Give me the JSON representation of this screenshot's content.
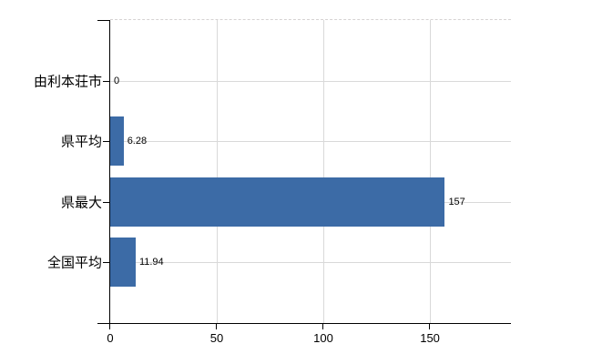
{
  "chart_data": {
    "type": "bar",
    "orientation": "horizontal",
    "title": "",
    "categories": [
      "由利本荘市",
      "県平均",
      "県最大",
      "全国平均"
    ],
    "values": [
      0,
      6.28,
      157,
      11.94
    ],
    "value_labels": [
      "0",
      "6.28",
      "157",
      "11.94"
    ],
    "xlim": [
      0,
      188
    ],
    "x_ticks": [
      0,
      50,
      100,
      150
    ],
    "x_tick_labels": [
      "0",
      "50",
      "100",
      "150"
    ],
    "grid": true,
    "legend": "none",
    "colors": {
      "bar": "#3c6ba6",
      "gridline": "#d9d9d9",
      "top_border": "#d6d3d3",
      "axis": "#000000",
      "text": "#000000",
      "background": "#ffffff"
    }
  }
}
